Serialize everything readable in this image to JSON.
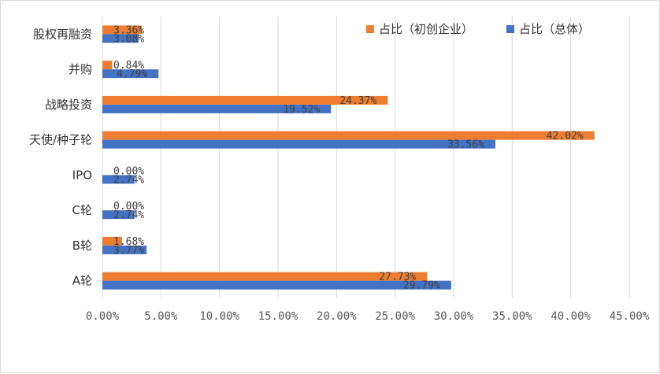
{
  "chart_data": {
    "type": "bar",
    "orientation": "horizontal",
    "categories": [
      "股权再融资",
      "并购",
      "战略投资",
      "天使/种子轮",
      "IPO",
      "C轮",
      "B轮",
      "A轮"
    ],
    "series": [
      {
        "name": "占比（初创企业）",
        "color": "#ED7D31",
        "values": [
          3.36,
          0.84,
          24.37,
          42.02,
          0.0,
          0.0,
          1.68,
          27.73
        ],
        "labels": [
          "3.36%",
          "0.84%",
          "24.37%",
          "42.02%",
          "0.00%",
          "0.00%",
          "1.68%",
          "27.73%"
        ]
      },
      {
        "name": "占比（总体）",
        "color": "#4472C4",
        "values": [
          3.08,
          4.79,
          19.52,
          33.56,
          2.74,
          2.74,
          3.77,
          29.79
        ],
        "labels": [
          "3.08%",
          "4.79%",
          "19.52%",
          "33.56%",
          "2.74%",
          "2.74%",
          "3.77%",
          "29.79%"
        ]
      }
    ],
    "xlim": [
      0,
      45
    ],
    "x_ticks": [
      "0.00%",
      "5.00%",
      "10.00%",
      "15.00%",
      "20.00%",
      "25.00%",
      "30.00%",
      "35.00%",
      "40.00%",
      "45.00%"
    ],
    "grid": true,
    "legend_position": "top-right",
    "title": "",
    "xlabel": "",
    "ylabel": ""
  }
}
